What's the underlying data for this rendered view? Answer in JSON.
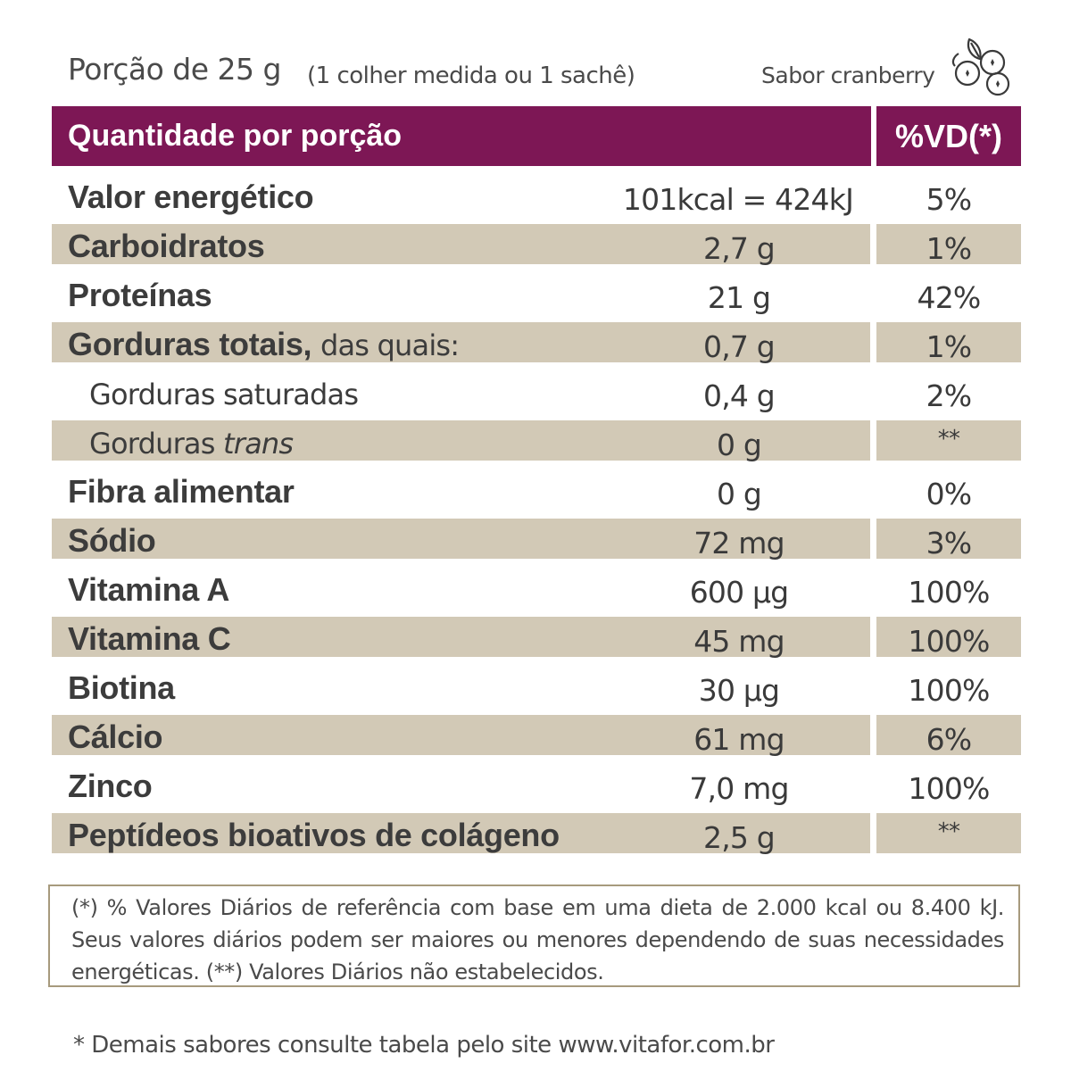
{
  "portion": {
    "label": "Porção de 25 g",
    "measure": "(1 colher medida ou 1 sachê)",
    "flavor": "Sabor cranberry",
    "flavor_icon": "cranberry-icon"
  },
  "header": {
    "quantity_label": "Quantidade por porção",
    "vd_label": "%VD(*)"
  },
  "colors": {
    "header_bg": "#7d1755",
    "shade": "#d2c9b6",
    "border": "#a79a7d"
  },
  "rows": [
    {
      "name": "Valor energético",
      "amount": "101kcal = 424kJ",
      "vd": "5%"
    },
    {
      "name": "Carboidratos",
      "amount": "2,7 g",
      "vd": "1%"
    },
    {
      "name": "Proteínas",
      "amount": "21 g",
      "vd": "42%"
    },
    {
      "name": "Gorduras totais,",
      "suffix": "das quais:",
      "amount": "0,7 g",
      "vd": "1%"
    },
    {
      "name": "Gorduras saturadas",
      "amount": "0,4 g",
      "vd": "2%"
    },
    {
      "name": "Gorduras",
      "italic": "trans",
      "amount": "0 g",
      "vd": "**"
    },
    {
      "name": "Fibra alimentar",
      "amount": "0 g",
      "vd": "0%"
    },
    {
      "name": "Sódio",
      "amount": "72 mg",
      "vd": "3%"
    },
    {
      "name": "Vitamina A",
      "amount": "600 µg",
      "vd": "100%"
    },
    {
      "name": "Vitamina C",
      "amount": "45 mg",
      "vd": "100%"
    },
    {
      "name": "Biotina",
      "amount": "30 µg",
      "vd": "100%"
    },
    {
      "name": "Cálcio",
      "amount": "61 mg",
      "vd": "6%"
    },
    {
      "name": "Zinco",
      "amount": "7,0 mg",
      "vd": "100%"
    },
    {
      "name": "Peptídeos bioativos de colágeno",
      "amount": "2,5 g",
      "vd": "**"
    }
  ],
  "footnote": "(*) % Valores Diários de referência com base em uma dieta de 2.000 kcal ou 8.400 kJ. Seus valores diários podem ser maiores ou menores dependendo de suas necessidades energéticas. (**) Valores Diários não estabelecidos.",
  "bottom_note": "* Demais sabores consulte tabela pelo site www.vitafor.com.br"
}
